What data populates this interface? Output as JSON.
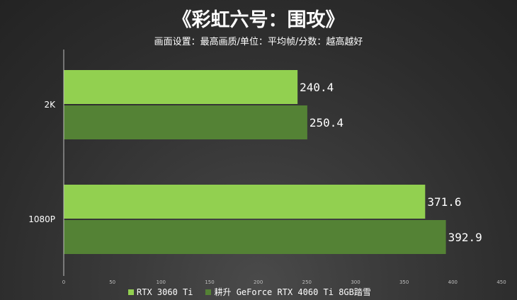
{
  "colors": {
    "series1": "#92d050",
    "series2": "#548235",
    "axis": "#bfbfbf",
    "text": "#ffffff"
  },
  "chart_data": {
    "type": "bar",
    "orientation": "horizontal",
    "title": "《彩虹六号：围攻》",
    "subtitle": "画面设置：最高画质/单位：平均帧/分数：越高越好",
    "categories": [
      "2K",
      "1080P"
    ],
    "series": [
      {
        "name": "RTX 3060 Ti",
        "values": [
          240.4,
          371.6
        ]
      },
      {
        "name": "耕升 GeForce RTX 4060 Ti 8GB踏雪",
        "values": [
          250.4,
          392.9
        ]
      }
    ],
    "xlim": [
      0,
      450
    ],
    "xticks": [
      0,
      50,
      100,
      150,
      200,
      250,
      300,
      350,
      400,
      450
    ],
    "legend_position": "bottom",
    "grid": false
  }
}
